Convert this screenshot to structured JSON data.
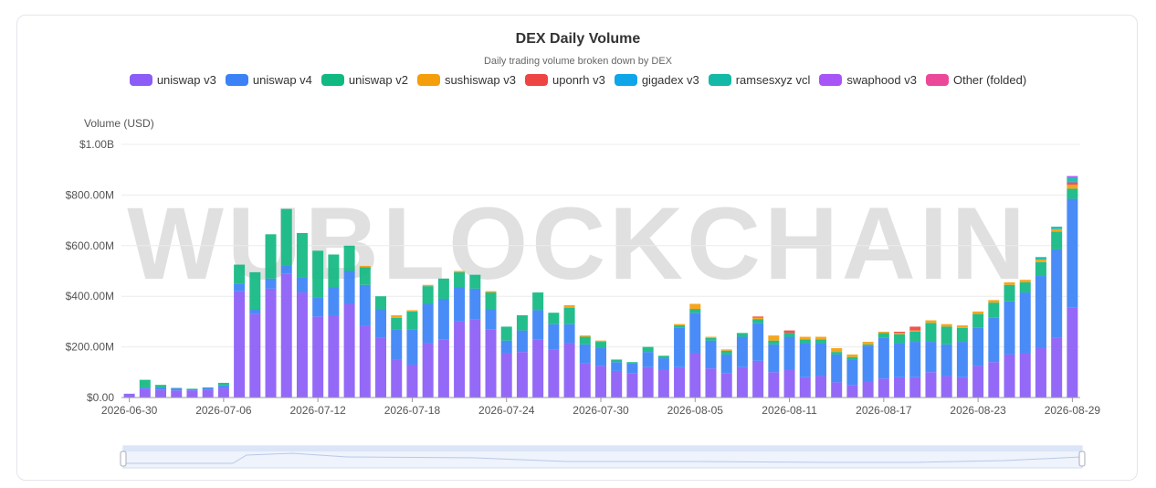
{
  "chart_data": {
    "type": "stacked_bar",
    "title": "DEX Daily Volume",
    "subtitle": "Daily trading volume broken down by DEX",
    "y_label": "Volume (USD)",
    "watermark": "WUBLOCKCHAIN",
    "grid": true,
    "categories": [
      "2026-06-30",
      null,
      null,
      null,
      null,
      null,
      "2026-07-06",
      null,
      null,
      null,
      null,
      null,
      "2026-07-12",
      null,
      null,
      null,
      null,
      null,
      "2026-07-18",
      null,
      null,
      null,
      null,
      null,
      "2026-07-24",
      null,
      null,
      null,
      null,
      null,
      "2026-07-30",
      null,
      null,
      null,
      null,
      null,
      "2026-08-05",
      null,
      null,
      null,
      null,
      null,
      "2026-08-11",
      null,
      null,
      null,
      null,
      null,
      "2026-08-17",
      null,
      null,
      null,
      null,
      null,
      "2026-08-23",
      null,
      null,
      null,
      null,
      null,
      "2026-08-29"
    ],
    "ylim": [
      0,
      1000000000.0
    ],
    "yticks": [
      {
        "value": 0,
        "label": "$0.00"
      },
      {
        "value": 200000000.0,
        "label": "$200.00M"
      },
      {
        "value": 400000000.0,
        "label": "$400.00M"
      },
      {
        "value": 600000000.0,
        "label": "$600.00M"
      },
      {
        "value": 800000000.0,
        "label": "$800.00M"
      },
      {
        "value": 1000000000.0,
        "label": "$1.00B"
      }
    ],
    "series": [
      {
        "name": "uniswap v3",
        "color": "#8b5cf6",
        "values": [
          15000000.0,
          35000000.0,
          30000000.0,
          28000000.0,
          28000000.0,
          30000000.0,
          38000000.0,
          420000000.0,
          330000000.0,
          430000000.0,
          490000000.0,
          415000000.0,
          320000000.0,
          325000000.0,
          370000000.0,
          285000000.0,
          235000000.0,
          150000000.0,
          130000000.0,
          215000000.0,
          230000000.0,
          300000000.0,
          310000000.0,
          270000000.0,
          175000000.0,
          180000000.0,
          230000000.0,
          190000000.0,
          215000000.0,
          135000000.0,
          125000000.0,
          105000000.0,
          95000000.0,
          120000000.0,
          110000000.0,
          120000000.0,
          175000000.0,
          115000000.0,
          95000000.0,
          120000000.0,
          145000000.0,
          100000000.0,
          110000000.0,
          80000000.0,
          85000000.0,
          60000000.0,
          50000000.0,
          65000000.0,
          75000000.0,
          80000000.0,
          80000000.0,
          100000000.0,
          85000000.0,
          80000000.0,
          125000000.0,
          140000000.0,
          170000000.0,
          175000000.0,
          195000000.0,
          235000000.0,
          355000000.0
        ]
      },
      {
        "name": "uniswap v4",
        "color": "#3b82f6",
        "values": [
          0,
          5000000.0,
          10000000.0,
          8000000.0,
          5000000.0,
          8000000.0,
          10000000.0,
          30000000.0,
          20000000.0,
          40000000.0,
          30000000.0,
          60000000.0,
          75000000.0,
          110000000.0,
          130000000.0,
          160000000.0,
          115000000.0,
          120000000.0,
          140000000.0,
          155000000.0,
          160000000.0,
          135000000.0,
          120000000.0,
          80000000.0,
          50000000.0,
          85000000.0,
          115000000.0,
          100000000.0,
          75000000.0,
          75000000.0,
          70000000.0,
          35000000.0,
          40000000.0,
          60000000.0,
          45000000.0,
          155000000.0,
          160000000.0,
          110000000.0,
          75000000.0,
          120000000.0,
          150000000.0,
          110000000.0,
          130000000.0,
          135000000.0,
          130000000.0,
          110000000.0,
          100000000.0,
          140000000.0,
          160000000.0,
          135000000.0,
          140000000.0,
          120000000.0,
          125000000.0,
          140000000.0,
          150000000.0,
          175000000.0,
          210000000.0,
          240000000.0,
          285000000.0,
          350000000.0,
          430000000.0
        ]
      },
      {
        "name": "uniswap v2",
        "color": "#10b981",
        "values": [
          0,
          30000000.0,
          10000000.0,
          2000000.0,
          2000000.0,
          2000000.0,
          10000000.0,
          75000000.0,
          145000000.0,
          175000000.0,
          225000000.0,
          175000000.0,
          185000000.0,
          130000000.0,
          100000000.0,
          70000000.0,
          50000000.0,
          45000000.0,
          70000000.0,
          70000000.0,
          80000000.0,
          60000000.0,
          55000000.0,
          65000000.0,
          55000000.0,
          60000000.0,
          70000000.0,
          45000000.0,
          65000000.0,
          30000000.0,
          25000000.0,
          10000000.0,
          5000000.0,
          20000000.0,
          10000000.0,
          10000000.0,
          15000000.0,
          10000000.0,
          15000000.0,
          15000000.0,
          15000000.0,
          15000000.0,
          15000000.0,
          15000000.0,
          15000000.0,
          10000000.0,
          10000000.0,
          5000000.0,
          20000000.0,
          35000000.0,
          40000000.0,
          75000000.0,
          70000000.0,
          55000000.0,
          55000000.0,
          60000000.0,
          65000000.0,
          40000000.0,
          55000000.0,
          70000000.0,
          40000000.0
        ]
      },
      {
        "name": "sushiswap v3",
        "color": "#f59e0b",
        "values": [
          0,
          0,
          0,
          0,
          0,
          0,
          0,
          0,
          0,
          0,
          0,
          0,
          0,
          0,
          0,
          5000000.0,
          0,
          10000000.0,
          5000000.0,
          5000000.0,
          0,
          5000000.0,
          0,
          5000000.0,
          0,
          0,
          0,
          0,
          10000000.0,
          5000000.0,
          5000000.0,
          0,
          0,
          0,
          0,
          5000000.0,
          20000000.0,
          5000000.0,
          5000000.0,
          0,
          5000000.0,
          20000000.0,
          0,
          10000000.0,
          10000000.0,
          15000000.0,
          10000000.0,
          10000000.0,
          5000000.0,
          5000000.0,
          5000000.0,
          10000000.0,
          10000000.0,
          10000000.0,
          10000000.0,
          10000000.0,
          10000000.0,
          10000000.0,
          10000000.0,
          10000000.0,
          15000000.0
        ]
      },
      {
        "name": "uponrh v3",
        "color": "#ef4444",
        "values": [
          0,
          0,
          0,
          0,
          0,
          0,
          0,
          0,
          0,
          0,
          0,
          0,
          0,
          0,
          0,
          0,
          0,
          0,
          0,
          0,
          0,
          0,
          0,
          0,
          0,
          0,
          0,
          0,
          0,
          0,
          0,
          0,
          0,
          0,
          0,
          0,
          0,
          0,
          0,
          0,
          5000000.0,
          0,
          10000000.0,
          0,
          0,
          0,
          0,
          0,
          0,
          5000000.0,
          15000000.0,
          0,
          0,
          0,
          0,
          0,
          0,
          0,
          0,
          0,
          10000000.0
        ]
      },
      {
        "name": "gigadex v3",
        "color": "#0ea5e9",
        "values": [
          0,
          0,
          0,
          0,
          0,
          0,
          0,
          0,
          0,
          0,
          0,
          0,
          0,
          0,
          0,
          0,
          0,
          0,
          0,
          0,
          0,
          0,
          0,
          0,
          0,
          0,
          0,
          0,
          0,
          0,
          0,
          0,
          0,
          0,
          0,
          0,
          0,
          0,
          0,
          0,
          0,
          0,
          0,
          0,
          0,
          0,
          0,
          0,
          0,
          0,
          0,
          0,
          0,
          0,
          0,
          0,
          0,
          0,
          0,
          0,
          5000000.0
        ]
      },
      {
        "name": "ramsesxyz vcl",
        "color": "#14b8a6",
        "values": [
          0,
          0,
          0,
          0,
          0,
          0,
          0,
          0,
          0,
          0,
          0,
          0,
          0,
          0,
          0,
          0,
          0,
          0,
          0,
          0,
          0,
          0,
          0,
          0,
          0,
          0,
          0,
          0,
          0,
          0,
          0,
          0,
          0,
          0,
          0,
          0,
          0,
          0,
          0,
          0,
          0,
          0,
          0,
          0,
          0,
          0,
          0,
          0,
          0,
          0,
          0,
          0,
          0,
          0,
          0,
          0,
          0,
          0,
          10000000.0,
          10000000.0,
          15000000.0
        ]
      },
      {
        "name": "swaphood v3",
        "color": "#a855f7",
        "values": [
          0,
          0,
          0,
          0,
          0,
          0,
          0,
          0,
          0,
          0,
          0,
          0,
          0,
          0,
          0,
          0,
          0,
          0,
          0,
          0,
          0,
          0,
          0,
          0,
          0,
          0,
          0,
          0,
          0,
          0,
          0,
          0,
          0,
          0,
          0,
          0,
          0,
          0,
          0,
          0,
          0,
          0,
          0,
          0,
          0,
          0,
          0,
          0,
          0,
          0,
          0,
          0,
          0,
          0,
          0,
          0,
          0,
          0,
          0,
          0,
          5000000.0
        ]
      },
      {
        "name": "Other (folded)",
        "color": "#ec4899",
        "values": [
          0,
          0,
          0,
          0,
          0,
          0,
          0,
          0,
          0,
          0,
          0,
          0,
          0,
          0,
          0,
          0,
          0,
          0,
          0,
          0,
          0,
          0,
          0,
          0,
          0,
          0,
          0,
          0,
          0,
          0,
          0,
          0,
          0,
          0,
          0,
          0,
          0,
          0,
          0,
          0,
          0,
          0,
          0,
          0,
          0,
          0,
          0,
          0,
          0,
          0,
          0,
          0,
          0,
          0,
          0,
          0,
          0,
          0,
          0,
          0,
          0
        ]
      }
    ]
  }
}
